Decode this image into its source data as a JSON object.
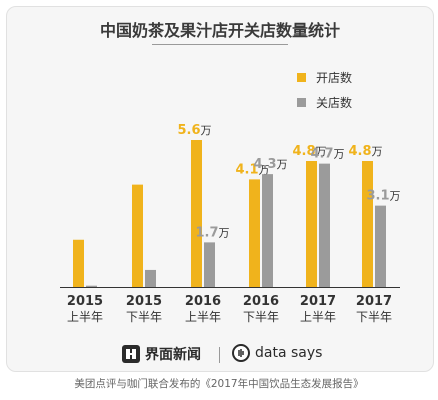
{
  "chart_data": {
    "type": "bar",
    "title": "中国奶茶及果汁店开关店数量统计",
    "categories": [
      [
        "2015",
        "上半年"
      ],
      [
        "2015",
        "下半年"
      ],
      [
        "2016",
        "上半年"
      ],
      [
        "2016",
        "下半年"
      ],
      [
        "2017",
        "上半年"
      ],
      [
        "2017",
        "下半年"
      ]
    ],
    "series": [
      {
        "name": "开店数",
        "values": [
          1.8,
          3.9,
          5.6,
          4.1,
          4.8,
          4.8
        ],
        "labels": [
          "",
          "",
          "5.6万",
          "4.1万",
          "4.8万",
          "4.8万"
        ]
      },
      {
        "name": "关店数",
        "values": [
          0.05,
          0.65,
          1.7,
          4.3,
          4.7,
          3.1
        ],
        "labels": [
          "",
          "",
          "1.7万",
          "4.3万",
          "4.7万",
          "3.1万"
        ]
      }
    ],
    "ylim": [
      0,
      6
    ],
    "colors": {
      "开店数": "#f0b31c",
      "关店数": "#9b9b9b"
    },
    "legend_position": "top-right",
    "grid": false
  },
  "footer": {
    "brand_left": "界面新闻",
    "brand_right": "data says",
    "source": "美团点评与咖门联合发布的《2017年中国饮品生态发展报告》"
  }
}
